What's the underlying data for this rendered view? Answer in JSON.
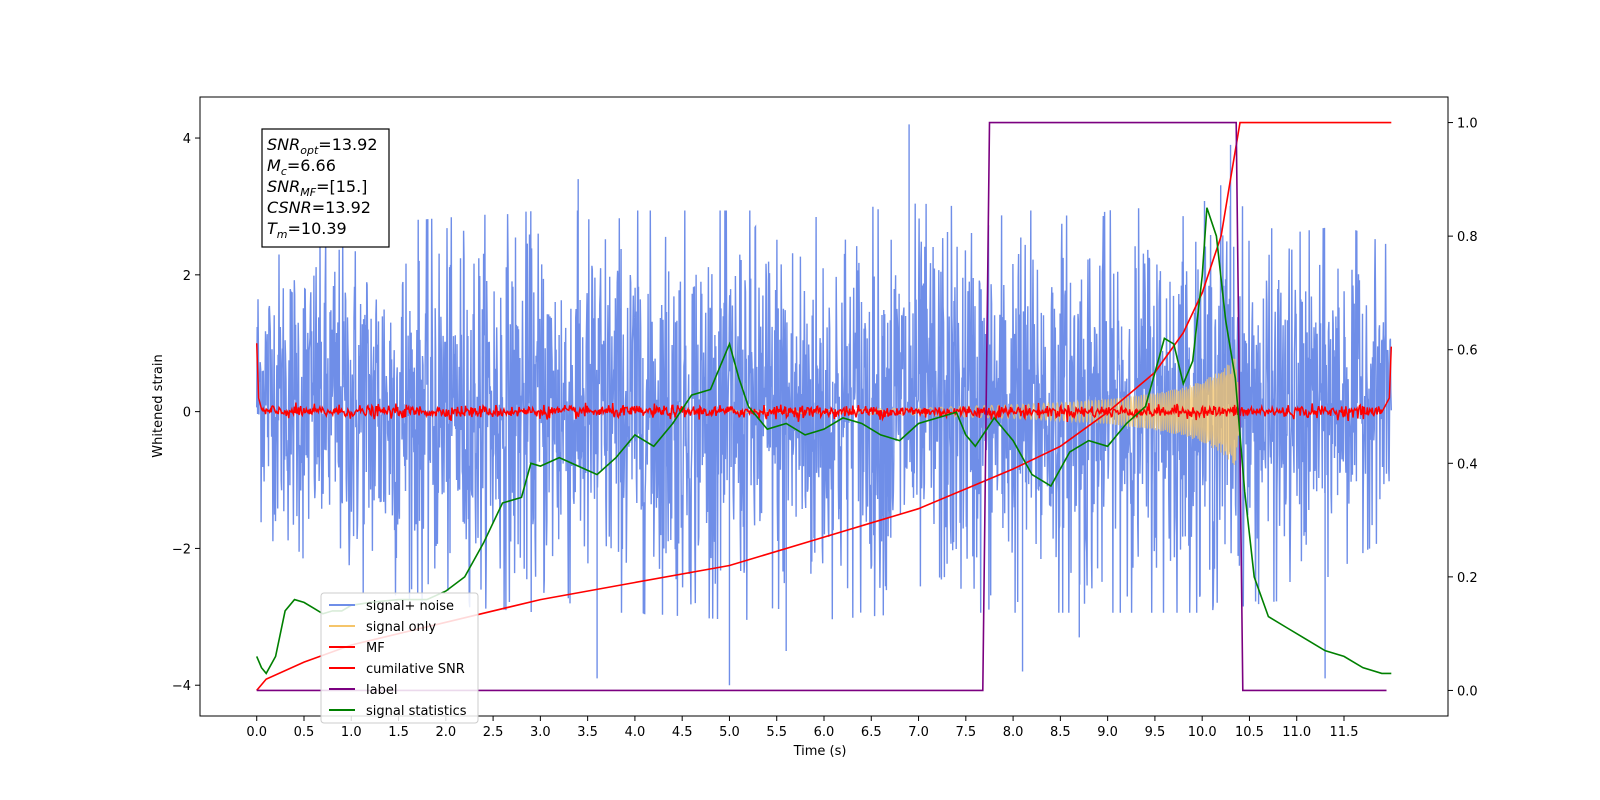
{
  "chart_data": {
    "type": "line",
    "xlabel": "Time (s)",
    "ylabel": "Whitened strain",
    "xlim": [
      -0.6,
      12.6
    ],
    "ylim_left": [
      -4.45,
      4.6
    ],
    "ylim_right": [
      -0.045,
      1.045
    ],
    "x_ticks": [
      0.0,
      0.5,
      1.0,
      1.5,
      2.0,
      2.5,
      3.0,
      3.5,
      4.0,
      4.5,
      5.0,
      5.5,
      6.0,
      6.5,
      7.0,
      7.5,
      8.0,
      8.5,
      9.0,
      9.5,
      10.0,
      10.5,
      11.0,
      11.5
    ],
    "x_tick_labels": [
      "0.0",
      "0.5",
      "1.0",
      "1.5",
      "2.0",
      "2.5",
      "3.0",
      "3.5",
      "4.0",
      "4.5",
      "5.0",
      "5.5",
      "6.0",
      "6.5",
      "7.0",
      "7.5",
      "8.0",
      "8.5",
      "9.0",
      "9.5",
      "10.0",
      "10.5",
      "11.0",
      "11.5"
    ],
    "left_y_ticks": [
      -4,
      -2,
      0,
      2,
      4
    ],
    "left_y_tick_labels": [
      "−4",
      "−2",
      "0",
      "2",
      "4"
    ],
    "right_y_ticks": [
      0.0,
      0.2,
      0.4,
      0.6,
      0.8,
      1.0
    ],
    "right_y_tick_labels": [
      "0.0",
      "0.2",
      "0.4",
      "0.6",
      "0.8",
      "1.0"
    ],
    "grid": false,
    "legend_placement": "lower-left",
    "annotations": {
      "snr_opt": {
        "base": "SNR",
        "sub": "opt",
        "value": "=13.92"
      },
      "mc": {
        "base": "M",
        "sub": "c",
        "value": "=6.66"
      },
      "snr_mf": {
        "base": "SNR",
        "sub": "MF",
        "value": "=[15.]"
      },
      "csnr": {
        "base": "CSNR",
        "sub": "",
        "value": "=13.92"
      },
      "tm": {
        "base": "T",
        "sub": "m",
        "value": "=10.39"
      }
    },
    "series": [
      {
        "name": "signal+ noise",
        "color": "#6f8ee8",
        "axis": "left",
        "description": "whitened noise, approx. range -3.5 to 4.2",
        "band_upper": [
          [
            0.0,
            2.3
          ],
          [
            1.0,
            2.6
          ],
          [
            2.0,
            2.7
          ],
          [
            3.0,
            2.8
          ],
          [
            4.0,
            2.8
          ],
          [
            5.0,
            2.8
          ],
          [
            6.0,
            2.8
          ],
          [
            7.0,
            2.9
          ],
          [
            8.0,
            2.8
          ],
          [
            9.0,
            2.8
          ],
          [
            10.0,
            2.9
          ],
          [
            10.3,
            3.3
          ],
          [
            10.5,
            2.6
          ],
          [
            11.0,
            2.5
          ],
          [
            11.5,
            2.6
          ],
          [
            12.0,
            2.3
          ]
        ],
        "band_lower": [
          [
            0.0,
            -1.6
          ],
          [
            0.5,
            -2.2
          ],
          [
            1.0,
            -2.5
          ],
          [
            2.0,
            -2.7
          ],
          [
            3.0,
            -2.8
          ],
          [
            4.0,
            -2.8
          ],
          [
            5.0,
            -2.9
          ],
          [
            6.0,
            -2.9
          ],
          [
            7.0,
            -2.8
          ],
          [
            8.0,
            -2.8
          ],
          [
            9.0,
            -2.8
          ],
          [
            10.0,
            -2.8
          ],
          [
            11.0,
            -2.6
          ],
          [
            12.0,
            -1.7
          ]
        ],
        "spikes": [
          [
            3.4,
            3.4
          ],
          [
            6.9,
            4.2
          ],
          [
            10.3,
            3.9
          ],
          [
            3.6,
            -3.9
          ],
          [
            5.0,
            -4.0
          ],
          [
            5.6,
            -3.5
          ],
          [
            8.1,
            -3.8
          ],
          [
            11.3,
            -3.9
          ],
          [
            8.7,
            -3.3
          ]
        ]
      },
      {
        "name": "signal only",
        "color": "#f5c56a",
        "axis": "left",
        "envelope": [
          [
            5.0,
            0.02
          ],
          [
            6.0,
            0.03
          ],
          [
            7.0,
            0.05
          ],
          [
            7.5,
            0.08
          ],
          [
            8.0,
            0.1
          ],
          [
            8.5,
            0.13
          ],
          [
            9.0,
            0.18
          ],
          [
            9.5,
            0.27
          ],
          [
            9.8,
            0.35
          ],
          [
            10.0,
            0.45
          ],
          [
            10.2,
            0.6
          ],
          [
            10.35,
            0.8
          ],
          [
            10.4,
            0.3
          ]
        ]
      },
      {
        "name": "MF",
        "color": "#ff0000",
        "axis": "left",
        "description": "matched-filter output, approx. ±0.15 around 0",
        "points": [
          [
            0.0,
            1.0
          ],
          [
            0.02,
            0.2
          ],
          [
            0.05,
            0.0
          ],
          [
            11.95,
            0.0
          ],
          [
            11.98,
            0.2
          ],
          [
            12.0,
            0.95
          ]
        ]
      },
      {
        "name": "cumilative SNR",
        "color": "#ff0000",
        "axis": "right",
        "points": [
          [
            0.0,
            0.0
          ],
          [
            0.1,
            0.02
          ],
          [
            0.5,
            0.05
          ],
          [
            1.0,
            0.08
          ],
          [
            2.0,
            0.12
          ],
          [
            3.0,
            0.16
          ],
          [
            4.0,
            0.19
          ],
          [
            5.0,
            0.22
          ],
          [
            6.0,
            0.27
          ],
          [
            7.0,
            0.32
          ],
          [
            8.0,
            0.39
          ],
          [
            8.5,
            0.43
          ],
          [
            9.0,
            0.49
          ],
          [
            9.5,
            0.56
          ],
          [
            9.8,
            0.63
          ],
          [
            10.0,
            0.7
          ],
          [
            10.2,
            0.8
          ],
          [
            10.3,
            0.9
          ],
          [
            10.4,
            1.0
          ],
          [
            12.0,
            1.0
          ]
        ]
      },
      {
        "name": "label",
        "color": "#7b0080",
        "axis": "right",
        "points": [
          [
            0.0,
            0.0
          ],
          [
            7.68,
            0.0
          ],
          [
            7.75,
            1.0
          ],
          [
            10.36,
            1.0
          ],
          [
            10.43,
            0.0
          ],
          [
            11.95,
            0.0
          ]
        ]
      },
      {
        "name": "signal statistics",
        "color": "#008000",
        "axis": "right",
        "points": [
          [
            0.0,
            0.06
          ],
          [
            0.05,
            0.04
          ],
          [
            0.1,
            0.03
          ],
          [
            0.2,
            0.06
          ],
          [
            0.3,
            0.14
          ],
          [
            0.4,
            0.16
          ],
          [
            0.5,
            0.155
          ],
          [
            0.6,
            0.145
          ],
          [
            0.7,
            0.135
          ],
          [
            0.8,
            0.14
          ],
          [
            0.9,
            0.14
          ],
          [
            1.0,
            0.15
          ],
          [
            1.2,
            0.155
          ],
          [
            1.5,
            0.16
          ],
          [
            1.8,
            0.16
          ],
          [
            2.0,
            0.175
          ],
          [
            2.2,
            0.2
          ],
          [
            2.4,
            0.26
          ],
          [
            2.6,
            0.33
          ],
          [
            2.8,
            0.34
          ],
          [
            2.9,
            0.4
          ],
          [
            3.0,
            0.395
          ],
          [
            3.2,
            0.41
          ],
          [
            3.4,
            0.395
          ],
          [
            3.6,
            0.38
          ],
          [
            3.8,
            0.41
          ],
          [
            4.0,
            0.45
          ],
          [
            4.2,
            0.43
          ],
          [
            4.4,
            0.47
          ],
          [
            4.6,
            0.52
          ],
          [
            4.8,
            0.53
          ],
          [
            5.0,
            0.61
          ],
          [
            5.1,
            0.55
          ],
          [
            5.2,
            0.5
          ],
          [
            5.4,
            0.46
          ],
          [
            5.6,
            0.47
          ],
          [
            5.8,
            0.45
          ],
          [
            6.0,
            0.46
          ],
          [
            6.2,
            0.48
          ],
          [
            6.4,
            0.47
          ],
          [
            6.6,
            0.45
          ],
          [
            6.8,
            0.44
          ],
          [
            7.0,
            0.47
          ],
          [
            7.2,
            0.48
          ],
          [
            7.4,
            0.49
          ],
          [
            7.5,
            0.45
          ],
          [
            7.6,
            0.43
          ],
          [
            7.8,
            0.48
          ],
          [
            8.0,
            0.44
          ],
          [
            8.2,
            0.38
          ],
          [
            8.4,
            0.36
          ],
          [
            8.6,
            0.42
          ],
          [
            8.8,
            0.44
          ],
          [
            9.0,
            0.43
          ],
          [
            9.2,
            0.47
          ],
          [
            9.4,
            0.5
          ],
          [
            9.6,
            0.62
          ],
          [
            9.7,
            0.61
          ],
          [
            9.8,
            0.54
          ],
          [
            9.9,
            0.58
          ],
          [
            10.0,
            0.73
          ],
          [
            10.05,
            0.85
          ],
          [
            10.15,
            0.8
          ],
          [
            10.25,
            0.65
          ],
          [
            10.35,
            0.55
          ],
          [
            10.45,
            0.35
          ],
          [
            10.55,
            0.2
          ],
          [
            10.7,
            0.13
          ],
          [
            10.9,
            0.11
          ],
          [
            11.1,
            0.09
          ],
          [
            11.3,
            0.07
          ],
          [
            11.5,
            0.06
          ],
          [
            11.7,
            0.04
          ],
          [
            11.9,
            0.03
          ],
          [
            12.0,
            0.03
          ]
        ]
      }
    ]
  }
}
